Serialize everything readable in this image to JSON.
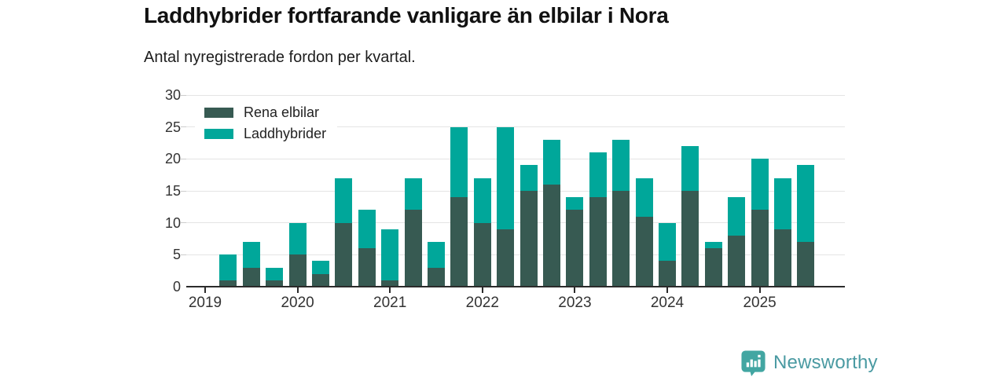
{
  "header": {
    "title": "Laddhybrider fortfarande vanligare än elbilar i Nora",
    "subtitle": "Antal nyregistrerade fordon per kvartal."
  },
  "legend": [
    {
      "label": "Rena elbilar",
      "color": "#375a52"
    },
    {
      "label": "Laddhybrider",
      "color": "#00a79a"
    }
  ],
  "chart_data": {
    "type": "bar",
    "stacked": true,
    "title": "Laddhybrider fortfarande vanligare än elbilar i Nora",
    "subtitle": "Antal nyregistrerade fordon per kvartal.",
    "x": [
      "2019-Q1",
      "2019-Q2",
      "2019-Q3",
      "2019-Q4",
      "2020-Q1",
      "2020-Q2",
      "2020-Q3",
      "2020-Q4",
      "2021-Q1",
      "2021-Q2",
      "2021-Q3",
      "2021-Q4",
      "2022-Q1",
      "2022-Q2",
      "2022-Q3",
      "2022-Q4",
      "2023-Q1",
      "2023-Q2",
      "2023-Q3",
      "2023-Q4",
      "2024-Q1",
      "2024-Q2",
      "2024-Q3",
      "2024-Q4",
      "2025-Q1",
      "2025-Q2",
      "2025-Q3"
    ],
    "series": [
      {
        "name": "Rena elbilar",
        "color": "#375a52",
        "values": [
          0,
          1,
          3,
          1,
          5,
          2,
          10,
          6,
          1,
          12,
          3,
          14,
          10,
          9,
          15,
          16,
          12,
          14,
          15,
          11,
          4,
          15,
          6,
          8,
          12,
          9,
          7
        ]
      },
      {
        "name": "Laddhybrider",
        "color": "#00a79a",
        "values": [
          0,
          4,
          4,
          2,
          5,
          2,
          7,
          6,
          8,
          5,
          4,
          11,
          7,
          16,
          4,
          7,
          2,
          7,
          8,
          6,
          6,
          7,
          1,
          6,
          8,
          8,
          12
        ]
      }
    ],
    "ylim": [
      0,
      30
    ],
    "y_ticks": [
      0,
      5,
      10,
      15,
      20,
      25,
      30
    ],
    "x_tick_labels": [
      "2019",
      "2020",
      "2021",
      "2022",
      "2023",
      "2024",
      "2025"
    ],
    "grid": "horizontal",
    "legend_position": "top-left-inside",
    "axis_color": "#2b2b2b",
    "grid_color": "#e4e4e4"
  },
  "footer": {
    "brand": "Newsworthy",
    "brand_color": "#4a9aa2",
    "icon": "newsworthy-bars-badge-icon",
    "icon_color": "#42a6a2"
  }
}
